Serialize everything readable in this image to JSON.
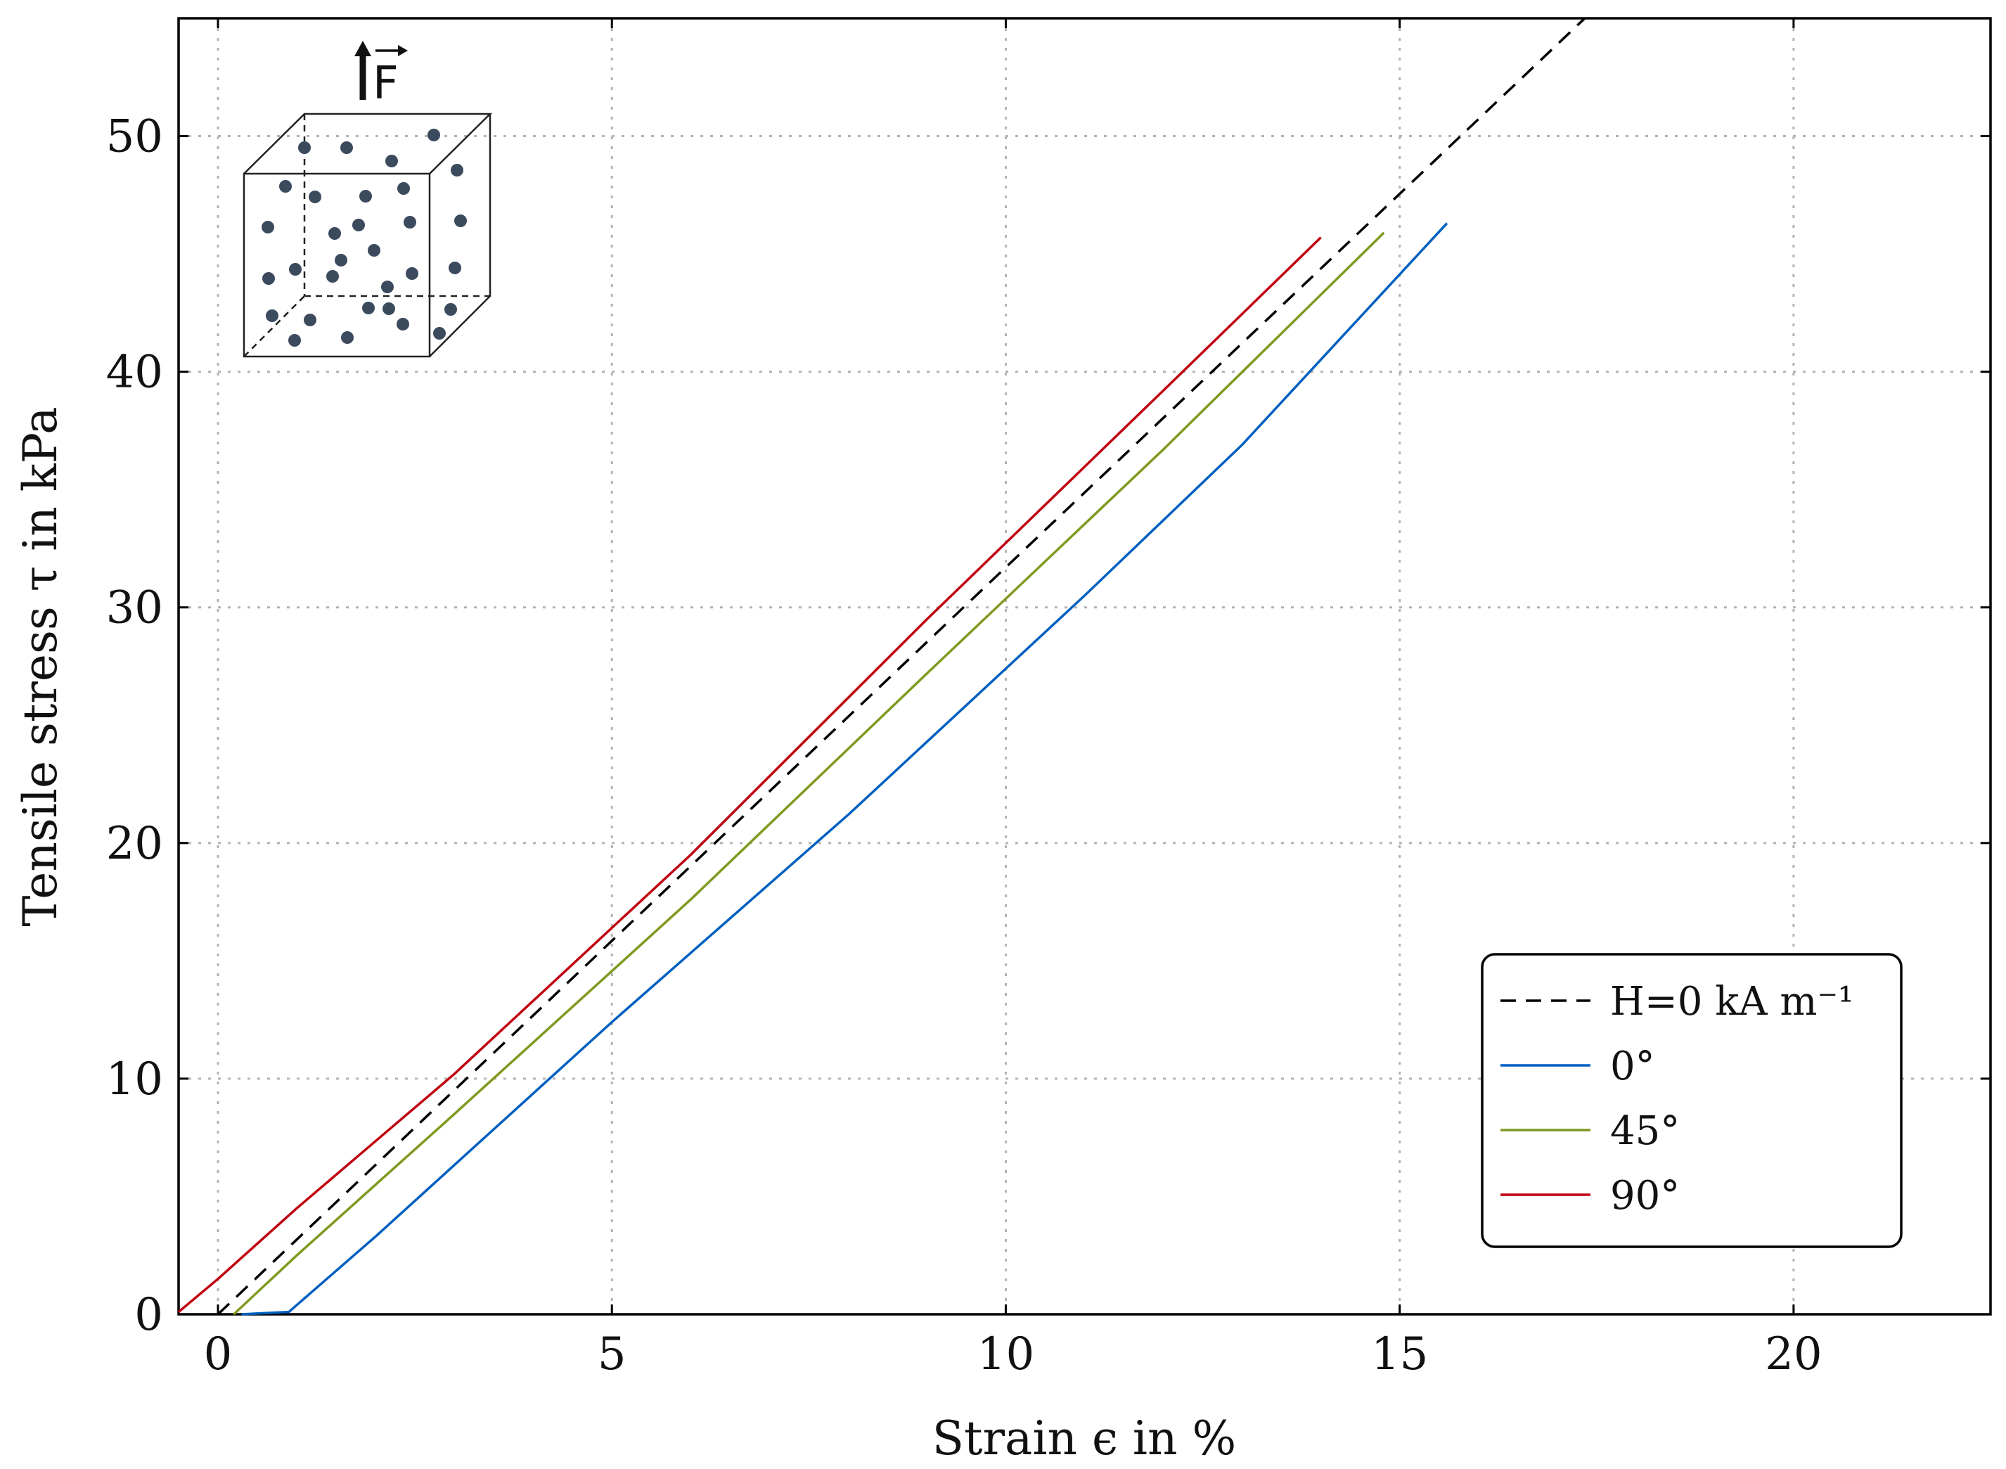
{
  "chart_data": {
    "type": "line",
    "title": "",
    "xlabel": "Strain ϵ in %",
    "ylabel": "Tensile stress τ in kPa",
    "xlim": [
      -0.5,
      22.5
    ],
    "ylim": [
      0,
      55
    ],
    "xticks": [
      0,
      5,
      10,
      15,
      20
    ],
    "yticks": [
      0,
      10,
      20,
      30,
      40,
      50
    ],
    "grid": true,
    "legend_position": "bottom-right",
    "series": [
      {
        "name": "H=0 kA m⁻¹",
        "color": "#000000",
        "dash": true,
        "points": [
          [
            0,
            0
          ],
          [
            17.35,
            55
          ]
        ]
      },
      {
        "name": "0°",
        "color": "#0060c0",
        "dash": false,
        "points": [
          [
            0.3,
            0
          ],
          [
            0.9,
            0.1
          ],
          [
            2,
            3.3
          ],
          [
            5,
            12.4
          ],
          [
            8,
            21.2
          ],
          [
            11,
            30.5
          ],
          [
            13,
            36.9
          ],
          [
            15.6,
            46.3
          ]
        ]
      },
      {
        "name": "45°",
        "color": "#7f9a20",
        "dash": false,
        "points": [
          [
            0.2,
            0
          ],
          [
            1,
            2.5
          ],
          [
            3,
            8.5
          ],
          [
            6,
            17.6
          ],
          [
            9,
            27.2
          ],
          [
            12,
            36.7
          ],
          [
            14.8,
            45.9
          ]
        ]
      },
      {
        "name": "90°",
        "color": "#c00010",
        "dash": false,
        "points": [
          [
            -0.5,
            0.1
          ],
          [
            0,
            1.5
          ],
          [
            1,
            4.5
          ],
          [
            3,
            10.2
          ],
          [
            6,
            19.5
          ],
          [
            9,
            29.5
          ],
          [
            12,
            39.2
          ],
          [
            14,
            45.7
          ]
        ]
      }
    ]
  },
  "inset": {
    "force_label": "F"
  }
}
